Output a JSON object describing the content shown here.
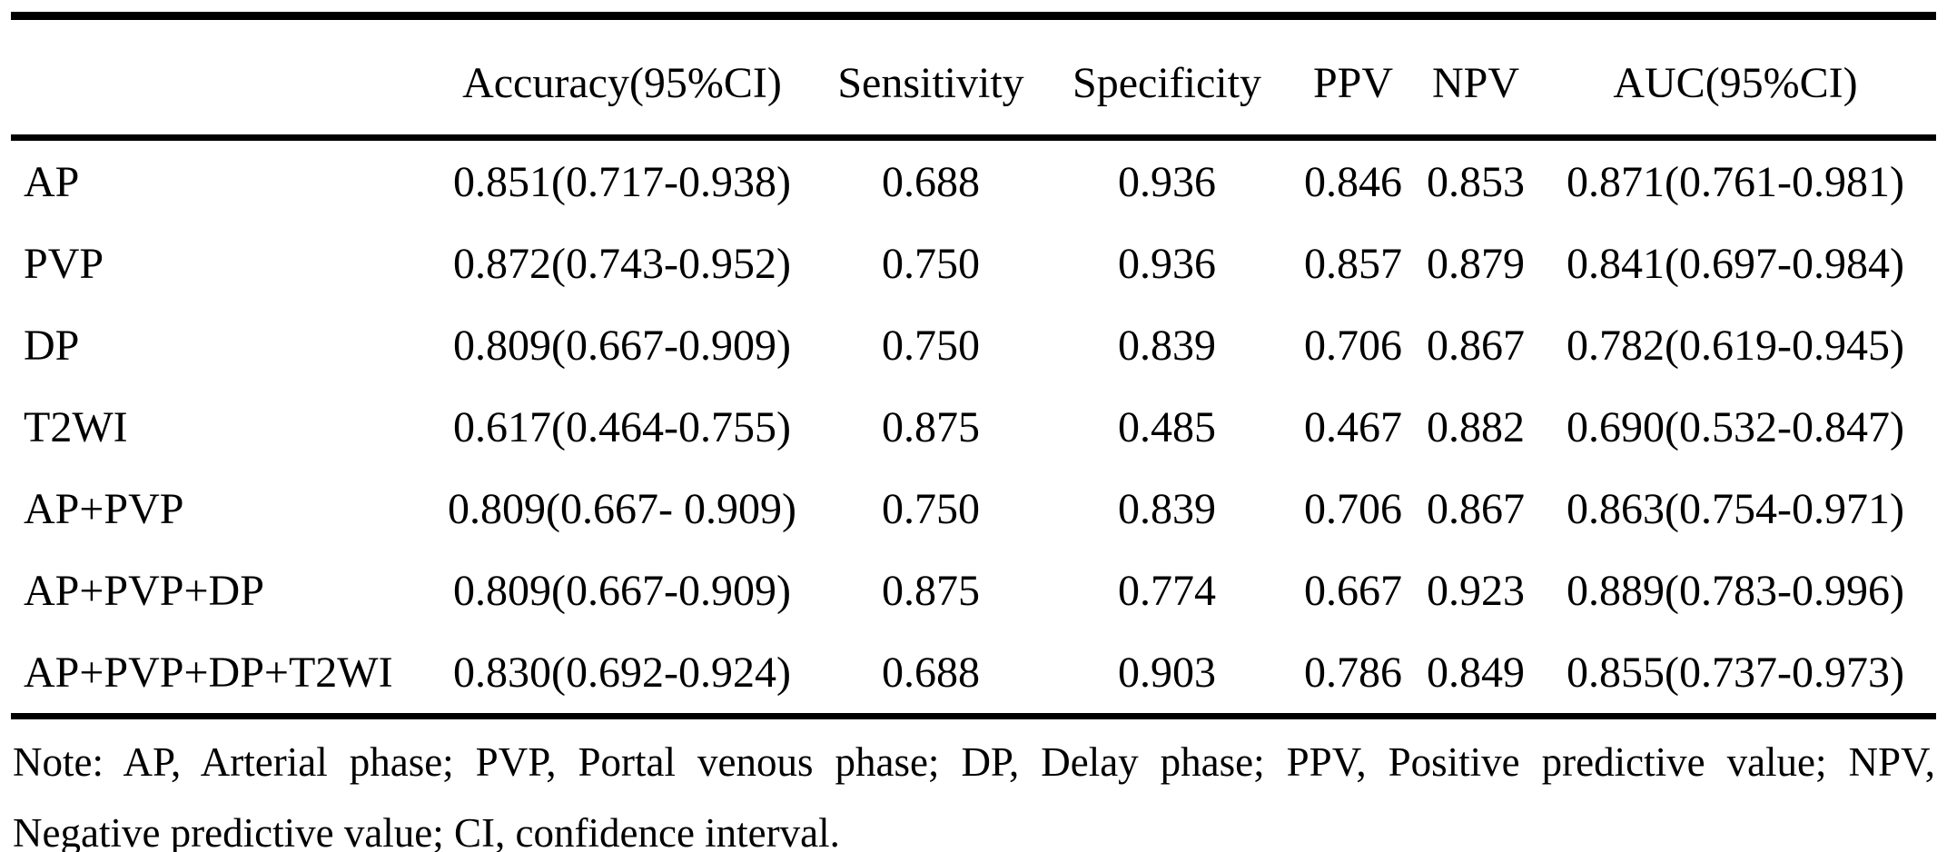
{
  "table": {
    "headers": [
      "",
      "Accuracy(95%CI)",
      "Sensitivity",
      "Specificity",
      "PPV",
      "NPV",
      "AUC(95%CI)"
    ],
    "rows": [
      {
        "cells": [
          "AP",
          "0.851(0.717-0.938)",
          "0.688",
          "0.936",
          "0.846",
          "0.853",
          "0.871(0.761-0.981)"
        ]
      },
      {
        "cells": [
          "PVP",
          "0.872(0.743-0.952)",
          "0.750",
          "0.936",
          "0.857",
          "0.879",
          "0.841(0.697-0.984)"
        ]
      },
      {
        "cells": [
          "DP",
          "0.809(0.667-0.909)",
          "0.750",
          "0.839",
          "0.706",
          "0.867",
          "0.782(0.619-0.945)"
        ]
      },
      {
        "cells": [
          "T2WI",
          "0.617(0.464-0.755)",
          "0.875",
          "0.485",
          "0.467",
          "0.882",
          "0.690(0.532-0.847)"
        ]
      },
      {
        "cells": [
          "AP+PVP",
          "0.809(0.667- 0.909)",
          "0.750",
          "0.839",
          "0.706",
          "0.867",
          "0.863(0.754-0.971)"
        ]
      },
      {
        "cells": [
          "AP+PVP+DP",
          "0.809(0.667-0.909)",
          "0.875",
          "0.774",
          "0.667",
          "0.923",
          "0.889(0.783-0.996)"
        ]
      },
      {
        "cells": [
          "AP+PVP+DP+T2WI",
          "0.830(0.692-0.924)",
          "0.688",
          "0.903",
          "0.786",
          "0.849",
          "0.855(0.737-0.973)"
        ]
      }
    ]
  },
  "note": {
    "line1": "Note: AP, Arterial phase; PVP, Portal venous phase; DP, Delay phase; PPV, Positive predictive value; NPV,",
    "line2": "Negative predictive value; CI, confidence interval."
  },
  "colors": {
    "text": "#000000",
    "background": "#ffffff",
    "rule": "#000000"
  }
}
